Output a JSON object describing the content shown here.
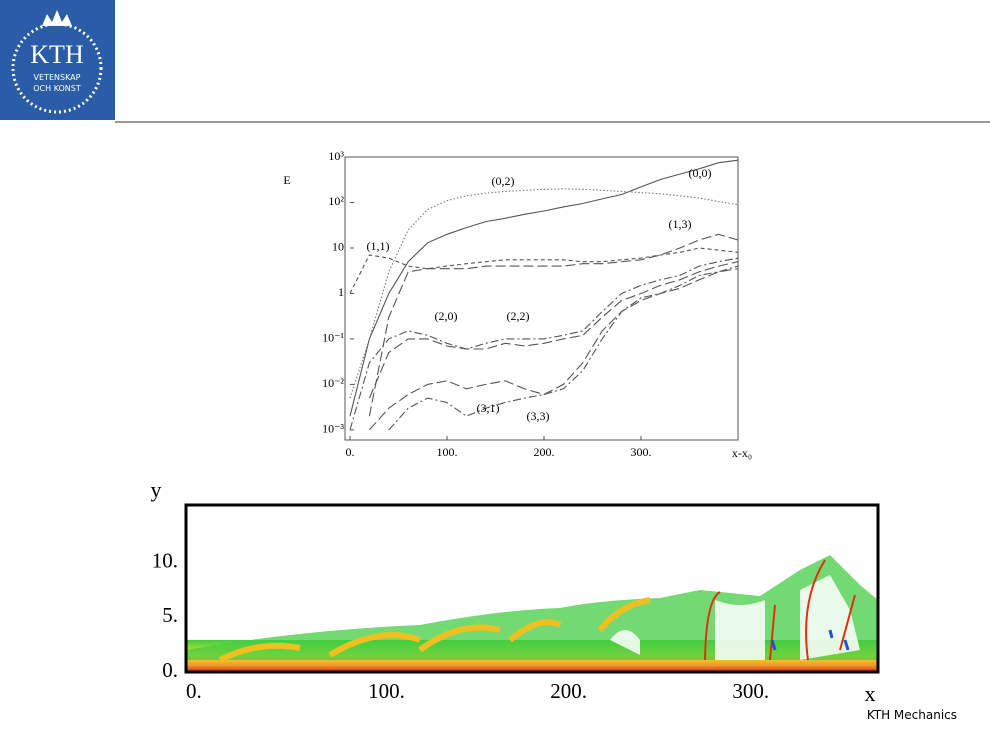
{
  "header": {
    "logo_title": "KTH",
    "logo_line1": "VETENSKAP",
    "logo_line2": "OCH KONST"
  },
  "footer": "KTH Mechanics",
  "chart_data": [
    {
      "type": "line",
      "ylabel": "E",
      "xlabel": "x-x₀",
      "yscale": "log",
      "xlim": [
        0,
        400
      ],
      "ylim": [
        0.0006,
        1000
      ],
      "xticks": [
        {
          "value": 0,
          "label": "0."
        },
        {
          "value": 100,
          "label": "100."
        },
        {
          "value": 200,
          "label": "200."
        },
        {
          "value": 300,
          "label": "300."
        }
      ],
      "yticks": [
        {
          "value": 0.001,
          "label": "10⁻³"
        },
        {
          "value": 0.01,
          "label": "10⁻²"
        },
        {
          "value": 0.1,
          "label": "10⁻¹"
        },
        1,
        10,
        {
          "value": 100,
          "label": "10²"
        },
        {
          "value": 1000,
          "label": "10³"
        }
      ],
      "x": [
        0,
        20,
        40,
        60,
        80,
        100,
        120,
        140,
        160,
        180,
        200,
        220,
        240,
        260,
        280,
        300,
        320,
        340,
        360,
        380,
        400
      ],
      "series": [
        {
          "name": "(0,0)",
          "color": "#555555",
          "dash": "solid",
          "values": [
            0.002,
            0.1,
            1,
            5,
            13,
            20,
            28,
            38,
            45,
            55,
            65,
            80,
            95,
            120,
            150,
            220,
            320,
            420,
            550,
            750,
            850
          ]
        },
        {
          "name": "(0,2)",
          "color": "#777777",
          "dash": "dotted",
          "values": [
            0.005,
            0.1,
            3,
            25,
            70,
            110,
            140,
            160,
            175,
            185,
            195,
            200,
            195,
            185,
            175,
            165,
            155,
            140,
            125,
            105,
            90
          ]
        },
        {
          "name": "(1,1)",
          "color": "#555555",
          "dash": "dashed",
          "values": [
            1,
            7,
            6,
            4,
            3.5,
            4,
            4.5,
            5,
            5.5,
            5.5,
            5.5,
            5.5,
            5,
            5,
            5.5,
            6,
            7,
            8,
            10,
            9,
            8
          ]
        },
        {
          "name": "(1,3)",
          "color": "#555555",
          "dash": "longdash",
          "values": [
            null,
            0.002,
            0.3,
            3,
            3.5,
            3.5,
            3.5,
            4,
            4,
            4,
            4,
            4,
            4.5,
            4.5,
            5,
            5.5,
            7,
            10,
            15,
            20,
            15
          ]
        },
        {
          "name": "(2,0)",
          "color": "#555555",
          "dash": "dashdot",
          "values": [
            0.001,
            0.03,
            0.1,
            0.15,
            0.12,
            0.08,
            0.06,
            0.08,
            0.1,
            0.1,
            0.1,
            0.12,
            0.15,
            0.4,
            1,
            1.5,
            2,
            2.5,
            4,
            5,
            6
          ]
        },
        {
          "name": "(2,2)",
          "color": "#555555",
          "dash": "longdash",
          "values": [
            null,
            0.005,
            0.05,
            0.1,
            0.1,
            0.07,
            0.06,
            0.06,
            0.08,
            0.07,
            0.08,
            0.1,
            0.12,
            0.3,
            0.7,
            1,
            1.5,
            2,
            3,
            4,
            5
          ]
        },
        {
          "name": "(3,1)",
          "color": "#555555",
          "dash": "dashdot",
          "values": [
            null,
            null,
            0.001,
            0.003,
            0.005,
            0.004,
            0.002,
            0.003,
            0.004,
            0.005,
            0.006,
            0.008,
            0.02,
            0.1,
            0.4,
            0.8,
            1,
            1.5,
            2.5,
            3,
            4
          ]
        },
        {
          "name": "(3,3)",
          "color": "#555555",
          "dash": "longdash",
          "values": [
            null,
            0.001,
            0.003,
            0.006,
            0.01,
            0.012,
            0.008,
            0.01,
            0.012,
            0.008,
            0.006,
            0.01,
            0.03,
            0.15,
            0.4,
            0.7,
            1,
            1.3,
            2,
            3,
            3.5
          ]
        }
      ]
    },
    {
      "type": "heatmap",
      "ylabel": "y",
      "xlabel": "x",
      "xlim": [
        0,
        380
      ],
      "ylim": [
        0,
        15.3
      ],
      "xticks": [
        {
          "value": 0,
          "label": "0."
        },
        {
          "value": 100,
          "label": "100."
        },
        {
          "value": 200,
          "label": "200."
        },
        {
          "value": 300,
          "label": "300."
        }
      ],
      "yticks": [
        {
          "value": 0,
          "label": "0."
        },
        {
          "value": 5,
          "label": "5."
        },
        {
          "value": 10,
          "label": "10."
        }
      ]
    }
  ]
}
